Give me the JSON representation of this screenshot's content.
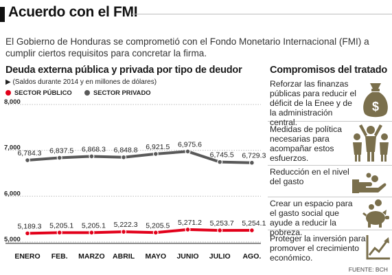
{
  "header": {
    "title": "Acuerdo con el FMI"
  },
  "intro": "El Gobierno de Honduras se comprometió con el Fondo Monetario Internacional (FMI) a cumplir ciertos requisitos para concretar la firma.",
  "chart": {
    "title": "Deuda externa pública y privada por tipo de deudor",
    "note": "▶ (Saldos durante 2014 y en millones de dólares)"
  },
  "colors": {
    "public": "#e2001a",
    "private": "#595959",
    "icon": "#7a6f4c"
  },
  "chart_data": {
    "type": "line",
    "categories": [
      "ENERO",
      "FEB.",
      "MARZO",
      "ABRIL",
      "MAYO",
      "JUNIO",
      "JULIO",
      "AGO."
    ],
    "series": [
      {
        "name": "SECTOR PÚBLICO",
        "values": [
          5189.3,
          5205.1,
          5205.1,
          5222.3,
          5205.5,
          5271.2,
          5253.7,
          5254.1
        ],
        "labels": [
          "5,189.3",
          "5,205.1",
          "5,205.1",
          "5,222.3",
          "5,205.5",
          "5,271.2",
          "5,253.7",
          "5,254.1"
        ]
      },
      {
        "name": "SECTOR PRIVADO",
        "values": [
          6784.3,
          6837.5,
          6868.3,
          6848.8,
          6921.5,
          6975.6,
          6745.5,
          6729.3
        ],
        "labels": [
          "6,784.3",
          "6,837.5",
          "6,868.3",
          "6,848.8",
          "6,921.5",
          "6,975.6",
          "6,745.5",
          "6,729.3"
        ]
      }
    ],
    "yticks": [
      5000,
      6000,
      7000,
      8000
    ],
    "yticklabels": [
      "5,000",
      "6,000",
      "7,000",
      "8,000"
    ],
    "ylim": [
      5000,
      8000
    ],
    "grid": true,
    "legend": "top-left"
  },
  "panel": {
    "title": "Compromisos del tratado",
    "items": [
      {
        "text": "Reforzar las finanzas públicas para reducir el déficit de la Enee y de la administración central.",
        "icon": "money-bag-icon"
      },
      {
        "text": "Medidas de política necesarias para acompañar estos esfuerzos.",
        "icon": "people-icon"
      },
      {
        "text": "Reducción en el nivel del gasto",
        "icon": "coin-hand-icon"
      },
      {
        "text": "Crear un espacio para el gasto social que ayude a reducir la pobreza.",
        "icon": "piggy-bank-icon"
      },
      {
        "text": "Proteger la inversión para promover el crecimiento económico.",
        "icon": "growth-chart-icon"
      }
    ]
  },
  "source": "FUENTE: BCH"
}
